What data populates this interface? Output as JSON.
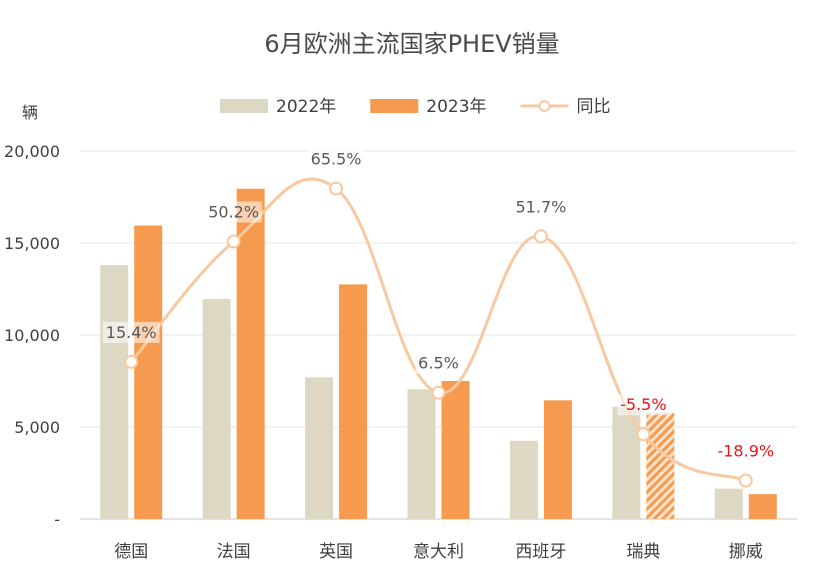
{
  "chart_data": {
    "type": "bar",
    "title": "6月欧洲主流国家PHEV销量",
    "ylabel": "辆",
    "xlabel": "",
    "ylim": [
      0,
      20000
    ],
    "y_ticks": [
      0,
      5000,
      10000,
      15000,
      20000
    ],
    "y_tick_labels": [
      "-",
      "5,000",
      "10,000",
      "15,000",
      "20,000"
    ],
    "categories": [
      "德国",
      "法国",
      "英国",
      "意大利",
      "西班牙",
      "瑞典",
      "挪威"
    ],
    "series": [
      {
        "name": "2022年",
        "type": "bar",
        "color": "#dcd8c3",
        "values": [
          13800,
          11950,
          7700,
          7050,
          4250,
          6100,
          1650
        ]
      },
      {
        "name": "2023年",
        "type": "bar",
        "color": "#f59a4e",
        "values": [
          15950,
          17950,
          12750,
          7500,
          6450,
          5750,
          1350
        ]
      },
      {
        "name": "同比",
        "type": "line",
        "color": "#f8c9a0",
        "values": [
          15.4,
          50.2,
          65.5,
          6.5,
          51.7,
          -5.5,
          -18.9
        ],
        "labels": [
          "15.4%",
          "50.2%",
          "65.5%",
          "6.5%",
          "51.7%",
          "-5.5%",
          "-18.9%"
        ]
      }
    ],
    "legend_position": "top-center",
    "highlight": {
      "category": "瑞典",
      "note": "hatched 2023 bar"
    },
    "negative_label_color": "#e8141b",
    "label_color": "#595959"
  }
}
